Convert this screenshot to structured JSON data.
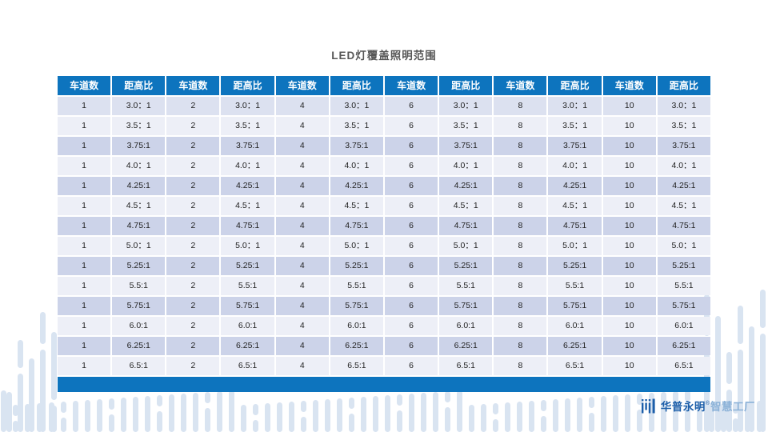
{
  "title": "LED灯覆盖照明范围",
  "table": {
    "header_lane_label": "车道数",
    "header_ratio_label": "距高比",
    "header": [
      "车道数",
      "距高比",
      "车道数",
      "距高比",
      "车道数",
      "距高比",
      "车道数",
      "距高比",
      "车道数",
      "距高比",
      "车道数",
      "距高比"
    ],
    "lanes": [
      "1",
      "2",
      "4",
      "6",
      "8",
      "10"
    ],
    "ratios": [
      "3.0：1",
      "3.5：1",
      "3.75:1",
      "4.0：1",
      "4.25:1",
      "4.5：1",
      "4.75:1",
      "5.0：1",
      "5.25:1",
      "5.5:1",
      "5.75:1",
      "6.0:1",
      "6.25:1",
      "6.5:1"
    ]
  },
  "logo": {
    "brand": "华普永明",
    "reg_mark": "®",
    "suffix": "智慧工厂"
  },
  "colors": {
    "header_blue": "#0d74be",
    "footer_blue": "#0d74be",
    "row_first": "#dce1f0",
    "row_dark": "#ccd3e9",
    "row_light": "#edeff7",
    "title_text": "#575757",
    "cell_text": "#1f1f1f",
    "deco_bar": "#d9e4f1",
    "brand_blue": "#1c5ea9",
    "brand_light": "#8cb2d8"
  }
}
